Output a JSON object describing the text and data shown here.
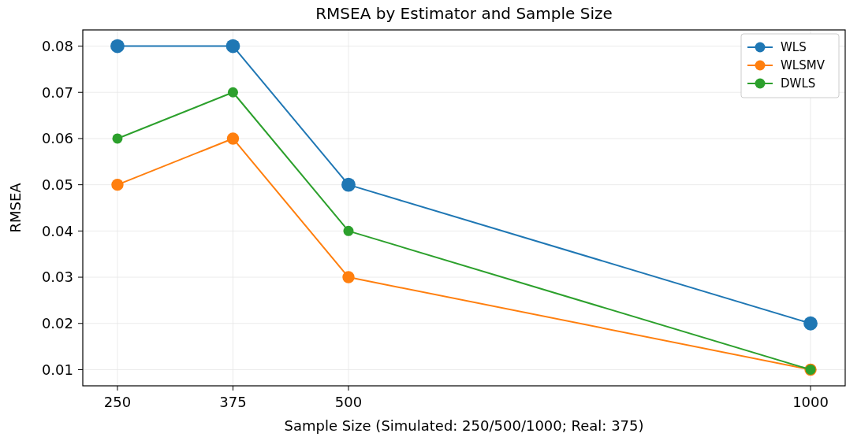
{
  "chart_data": {
    "type": "line",
    "title": "RMSEA by Estimator and Sample Size",
    "xlabel": "Sample Size (Simulated: 250/500/1000; Real: 375)",
    "ylabel": "RMSEA",
    "x": [
      250,
      375,
      500,
      1000
    ],
    "series": [
      {
        "name": "WLS",
        "color": "#1f77b4",
        "values": [
          0.08,
          0.08,
          0.05,
          0.02
        ]
      },
      {
        "name": "WLSMV",
        "color": "#ff7f0e",
        "values": [
          0.05,
          0.06,
          0.03,
          0.01
        ]
      },
      {
        "name": "DWLS",
        "color": "#2ca02c",
        "values": [
          0.06,
          0.07,
          0.04,
          0.01
        ]
      }
    ],
    "xlim": [
      212.5,
      1037.5
    ],
    "xticks": [
      250,
      375,
      500,
      1000
    ],
    "ylim": [
      0.0065,
      0.0835
    ],
    "yticks": [
      {
        "value": 0.01,
        "label": "0.01"
      },
      {
        "value": 0.02,
        "label": "0.02"
      },
      {
        "value": 0.03,
        "label": "0.03"
      },
      {
        "value": 0.04,
        "label": "0.04"
      },
      {
        "value": 0.05,
        "label": "0.05"
      },
      {
        "value": 0.06,
        "label": "0.06"
      },
      {
        "value": 0.07,
        "label": "0.07"
      },
      {
        "value": 0.08,
        "label": "0.08"
      }
    ],
    "grid": true,
    "legend": "top right",
    "marker": "circle",
    "line_style": "solid"
  }
}
